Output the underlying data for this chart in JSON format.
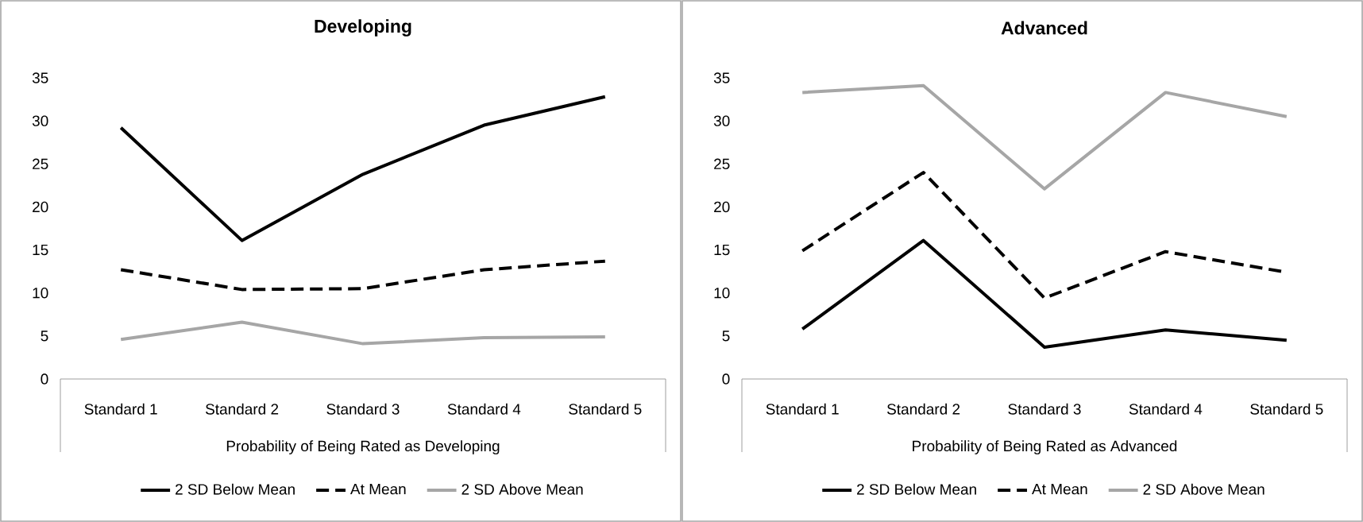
{
  "chart_data": [
    {
      "type": "line",
      "title": "Developing",
      "xlabel": "Probability of Being Rated as Developing",
      "categories": [
        "Standard 1",
        "Standard 2",
        "Standard 3",
        "Standard 4",
        "Standard 5"
      ],
      "ylim": [
        0,
        35
      ],
      "yticks": [
        0,
        5,
        10,
        15,
        20,
        25,
        30,
        35
      ],
      "legend": "bottom",
      "marker": "none",
      "series": [
        {
          "name": "2 SD Below Mean",
          "color": "#000000",
          "line_style": "solid",
          "values": [
            29.2,
            16.1,
            23.8,
            29.5,
            32.8
          ]
        },
        {
          "name": "At Mean",
          "color": "#000000",
          "line_style": "dashed",
          "values": [
            12.7,
            10.4,
            10.5,
            12.7,
            13.7
          ]
        },
        {
          "name": "2 SD Above Mean",
          "color": "#a6a6a6",
          "line_style": "solid",
          "values": [
            4.6,
            6.6,
            4.1,
            4.8,
            4.9
          ]
        }
      ]
    },
    {
      "type": "line",
      "title": "Advanced",
      "xlabel": "Probability of Being Rated as Advanced",
      "categories": [
        "Standard 1",
        "Standard 2",
        "Standard 3",
        "Standard 4",
        "Standard 5"
      ],
      "ylim": [
        0,
        35
      ],
      "yticks": [
        0,
        5,
        10,
        15,
        20,
        25,
        30,
        35
      ],
      "legend": "bottom",
      "marker": "none",
      "series": [
        {
          "name": "2 SD Below Mean",
          "color": "#000000",
          "line_style": "solid",
          "values": [
            5.8,
            16.1,
            3.7,
            5.7,
            4.5
          ]
        },
        {
          "name": "At Mean",
          "color": "#000000",
          "line_style": "dashed",
          "values": [
            14.9,
            24.0,
            9.4,
            14.8,
            12.4
          ]
        },
        {
          "name": "2 SD Above Mean",
          "color": "#a6a6a6",
          "line_style": "solid",
          "values": [
            33.3,
            34.1,
            22.1,
            33.3,
            30.5
          ]
        }
      ]
    }
  ]
}
